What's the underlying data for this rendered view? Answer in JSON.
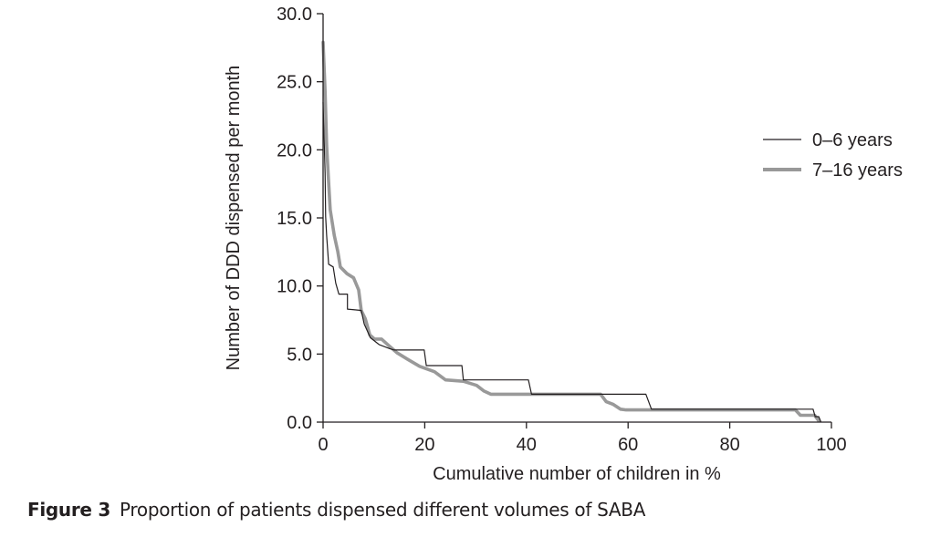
{
  "chart_data": {
    "type": "line",
    "title": "",
    "xlabel": "Cumulative number of children in %",
    "ylabel": "Number of DDD dispensed per month",
    "xlim": [
      0,
      100
    ],
    "ylim": [
      0,
      30
    ],
    "xticks": [
      0,
      20,
      40,
      60,
      80,
      100
    ],
    "xtick_labels": [
      "0",
      "20",
      "40",
      "60",
      "80",
      "100"
    ],
    "yticks": [
      0,
      5,
      10,
      15,
      20,
      25,
      30
    ],
    "ytick_labels": [
      "0.0",
      "5.0",
      "10.0",
      "15.0",
      "20.0",
      "25.0",
      "30.0"
    ],
    "grid": false,
    "legend_position": "right",
    "series": [
      {
        "name": "0–6 years",
        "color": "#231f20",
        "style": "thin",
        "x": [
          0,
          0.4,
          0.5,
          0.7,
          1.1,
          2.0,
          2.5,
          3.1,
          4.8,
          4.8,
          7.5,
          8.1,
          9.3,
          11.0,
          13.1,
          14.0,
          19.9,
          20.3,
          27.3,
          27.6,
          40.4,
          41.0,
          63.5,
          64.6,
          96.4,
          96.8,
          97.5,
          97.9
        ],
        "y": [
          23.5,
          18.3,
          15.1,
          13.7,
          11.6,
          11.4,
          10.2,
          9.4,
          9.4,
          8.3,
          8.2,
          7.2,
          6.2,
          5.7,
          5.4,
          5.3,
          5.3,
          4.15,
          4.15,
          3.1,
          3.1,
          2.05,
          2.05,
          0.95,
          0.95,
          0.4,
          0.4,
          0.05
        ]
      },
      {
        "name": "7–16 years",
        "color": "#999999",
        "style": "thick",
        "x": [
          0,
          0.4,
          0.7,
          1.1,
          1.4,
          2.2,
          2.9,
          3.4,
          4.7,
          6.0,
          7.0,
          7.5,
          8.3,
          9.2,
          10.1,
          11.5,
          12.7,
          14.5,
          16.7,
          19.0,
          21.9,
          24.1,
          27.6,
          30.2,
          31.6,
          33.0,
          54.6,
          55.7,
          57.1,
          58.5,
          59.6,
          92.9,
          93.9,
          96.7,
          97.5
        ],
        "y": [
          27.9,
          24.3,
          20.3,
          17.6,
          15.6,
          13.7,
          12.5,
          11.4,
          10.9,
          10.6,
          9.7,
          8.2,
          7.6,
          6.4,
          6.1,
          6.1,
          5.7,
          5.1,
          4.6,
          4.1,
          3.7,
          3.1,
          3.0,
          2.7,
          2.3,
          2.05,
          2.05,
          1.5,
          1.3,
          0.95,
          0.9,
          0.9,
          0.5,
          0.5,
          0.1
        ]
      }
    ]
  },
  "caption": {
    "figure_number": "Figure 3",
    "text": "Proportion of patients dispensed different volumes of SABA"
  }
}
